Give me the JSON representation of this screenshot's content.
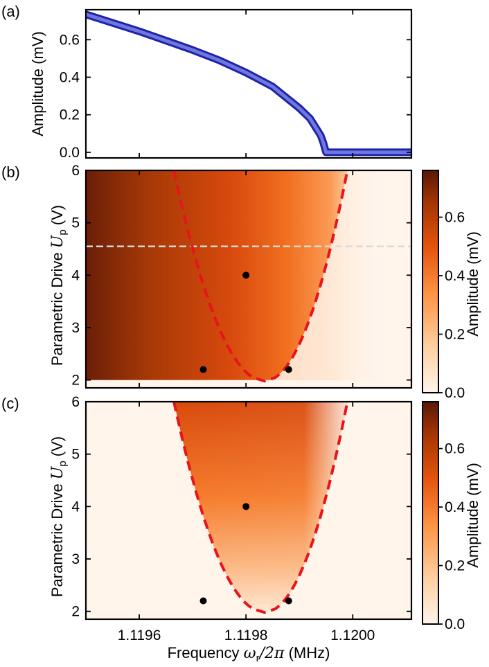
{
  "chart_data": [
    {
      "panel": "(a)",
      "type": "line",
      "title": "",
      "xlabel": "",
      "ylabel": "Amplitude (mV)",
      "xlim": [
        1.1195,
        1.12011
      ],
      "ylim": [
        -0.03,
        0.76
      ],
      "yticks": [
        0.0,
        0.2,
        0.4,
        0.6
      ],
      "ytick_labels": [
        "0.0",
        "0.2",
        "0.4",
        "0.6"
      ],
      "series": [
        {
          "name": "amplitude",
          "color": "#3b3fbf",
          "edge_color": "#1f23a5",
          "x": [
            1.1195,
            1.11955,
            1.1196,
            1.11965,
            1.1197,
            1.11975,
            1.1198,
            1.11985,
            1.1199,
            1.11992,
            1.11994,
            1.119945,
            1.11995,
            1.12,
            1.12005,
            1.12011
          ],
          "y": [
            0.735,
            0.69,
            0.645,
            0.595,
            0.545,
            0.49,
            0.425,
            0.35,
            0.235,
            0.18,
            0.09,
            0.05,
            0.0,
            0.0,
            0.0,
            0.0
          ]
        }
      ]
    },
    {
      "panel": "(b)",
      "type": "heatmap",
      "xlabel": "",
      "ylabel_text": "Parametric Drive ",
      "ylabel_math": "U",
      "ylabel_sub": "p",
      "ylabel_unit": " (V)",
      "xlim": [
        1.1195,
        1.12011
      ],
      "ylim": [
        1.85,
        6.0
      ],
      "yticks": [
        2,
        3,
        4,
        5,
        6
      ],
      "ytick_labels": [
        "2",
        "3",
        "4",
        "5",
        "6"
      ],
      "instability_tongue": {
        "color": "#e8131b",
        "center_freq": 1.119835,
        "min_drive": 1.98,
        "left_at_6": 1.119665,
        "right_at_6": 1.11999
      },
      "horizontal_cut": {
        "drive": 4.55,
        "color": "#d9d9d9"
      },
      "points": [
        {
          "x": 1.11972,
          "y": 2.2
        },
        {
          "x": 1.1198,
          "y": 4.0
        },
        {
          "x": 1.11988,
          "y": 2.2
        }
      ],
      "colorbar": {
        "label": "Amplitude (mV)",
        "ticks": [
          0.0,
          0.2,
          0.4,
          0.6
        ],
        "tick_labels": [
          "0.0",
          "0.2",
          "0.4",
          "0.6"
        ],
        "range": [
          0.0,
          0.76
        ],
        "colormap": "Oranges-dark"
      }
    },
    {
      "panel": "(c)",
      "type": "heatmap",
      "xlabel_text": "Frequency ",
      "xlabel_math": "ω",
      "xlabel_sub": "r",
      "xlabel_rest": "/2π",
      "xlabel_unit": " (MHz)",
      "ylabel_text": "Parametric Drive ",
      "ylabel_math": "U",
      "ylabel_sub": "p",
      "ylabel_unit": " (V)",
      "xlim": [
        1.1195,
        1.12011
      ],
      "ylim": [
        1.85,
        6.0
      ],
      "xticks": [
        1.1196,
        1.1198,
        1.12
      ],
      "xtick_labels": [
        "1.1196",
        "1.1198",
        "1.1200"
      ],
      "yticks": [
        2,
        3,
        4,
        5,
        6
      ],
      "ytick_labels": [
        "2",
        "3",
        "4",
        "5",
        "6"
      ],
      "instability_tongue": {
        "color": "#e8131b",
        "center_freq": 1.119835,
        "min_drive": 1.98,
        "left_at_6": 1.119665,
        "right_at_6": 1.11999
      },
      "points": [
        {
          "x": 1.11972,
          "y": 2.2
        },
        {
          "x": 1.1198,
          "y": 4.0
        },
        {
          "x": 1.11988,
          "y": 2.2
        }
      ],
      "colorbar": {
        "label": "Amplitude (mV)",
        "ticks": [
          0.0,
          0.2,
          0.4,
          0.6
        ],
        "tick_labels": [
          "0.0",
          "0.2",
          "0.4",
          "0.6"
        ],
        "range": [
          0.0,
          0.76
        ],
        "colormap": "Oranges-dark"
      }
    }
  ]
}
